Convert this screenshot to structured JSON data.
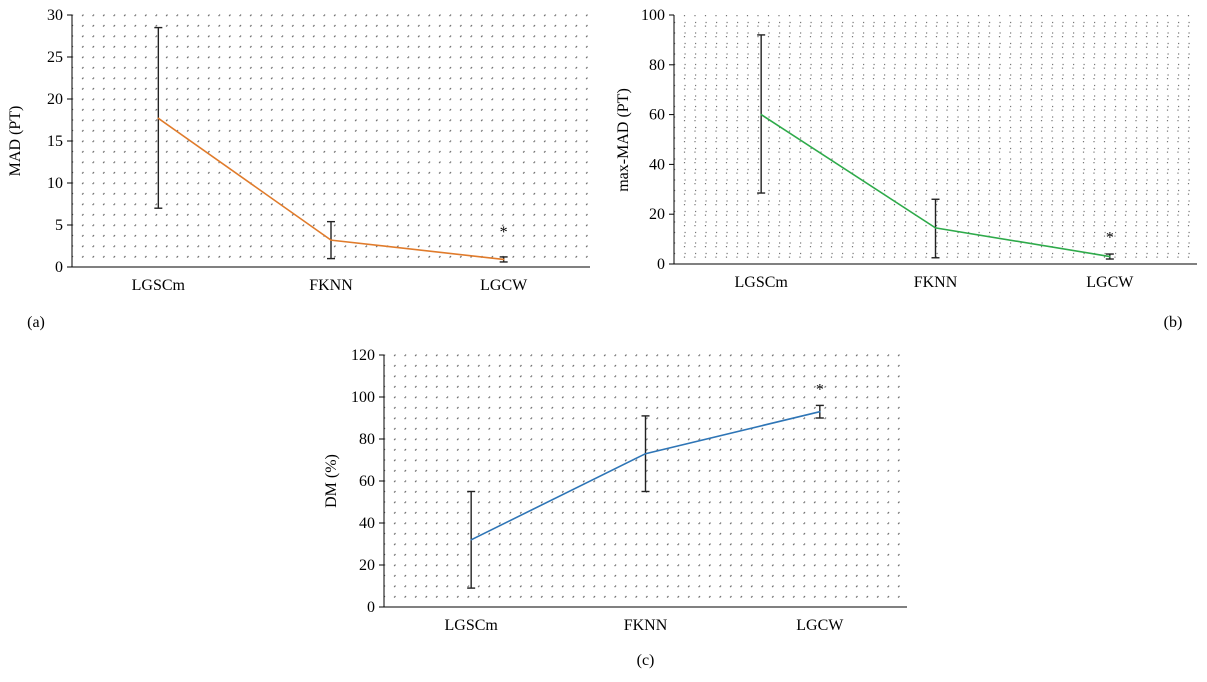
{
  "chart_data": [
    {
      "type": "line",
      "panel_label": "(a)",
      "ylabel": "MAD (PT)",
      "categories": [
        "LGSCm",
        "FKNN",
        "LGCW"
      ],
      "series": [
        {
          "values": [
            17.7,
            3.2,
            0.9
          ],
          "color": "#e07b2b"
        }
      ],
      "error_bars": [
        [
          7.0,
          28.5
        ],
        [
          1.0,
          5.4
        ],
        [
          0.6,
          1.2
        ]
      ],
      "ylim": [
        0,
        30
      ],
      "yticks": [
        0,
        5,
        10,
        15,
        20,
        25,
        30
      ],
      "ytick_labels": [
        "0",
        "5",
        "10",
        "15",
        "20",
        "25",
        "30"
      ],
      "annotation": {
        "category": "LGCW",
        "value": 4.3,
        "text": "*"
      },
      "grid": true
    },
    {
      "type": "line",
      "panel_label": "(b)",
      "ylabel": "max-MAD (PT)",
      "categories": [
        "LGSCm",
        "FKNN",
        "LGCW"
      ],
      "series": [
        {
          "values": [
            60,
            14.5,
            3
          ],
          "color": "#2eaa4a"
        }
      ],
      "error_bars": [
        [
          28.5,
          92
        ],
        [
          2.5,
          26
        ],
        [
          2,
          4
        ]
      ],
      "ylim": [
        0,
        100
      ],
      "yticks": [
        0,
        20,
        40,
        60,
        80,
        100
      ],
      "ytick_labels": [
        "0",
        "20",
        "40",
        "60",
        "80",
        "100"
      ],
      "annotation": {
        "category": "LGCW",
        "value": 11,
        "text": "*"
      },
      "grid": true
    },
    {
      "type": "line",
      "panel_label": "(c)",
      "ylabel": "DM (%)",
      "categories": [
        "LGSCm",
        "FKNN",
        "LGCW"
      ],
      "series": [
        {
          "values": [
            32,
            73,
            93
          ],
          "color": "#2e75b6"
        }
      ],
      "error_bars": [
        [
          9,
          55
        ],
        [
          55,
          91
        ],
        [
          90,
          96
        ]
      ],
      "ylim": [
        0,
        120
      ],
      "yticks": [
        0,
        20,
        40,
        60,
        80,
        100,
        120
      ],
      "ytick_labels": [
        "0",
        "20",
        "40",
        "60",
        "80",
        "100",
        "120"
      ],
      "annotation": {
        "category": "LGCW",
        "value": 104,
        "text": "*"
      },
      "grid": true
    }
  ]
}
